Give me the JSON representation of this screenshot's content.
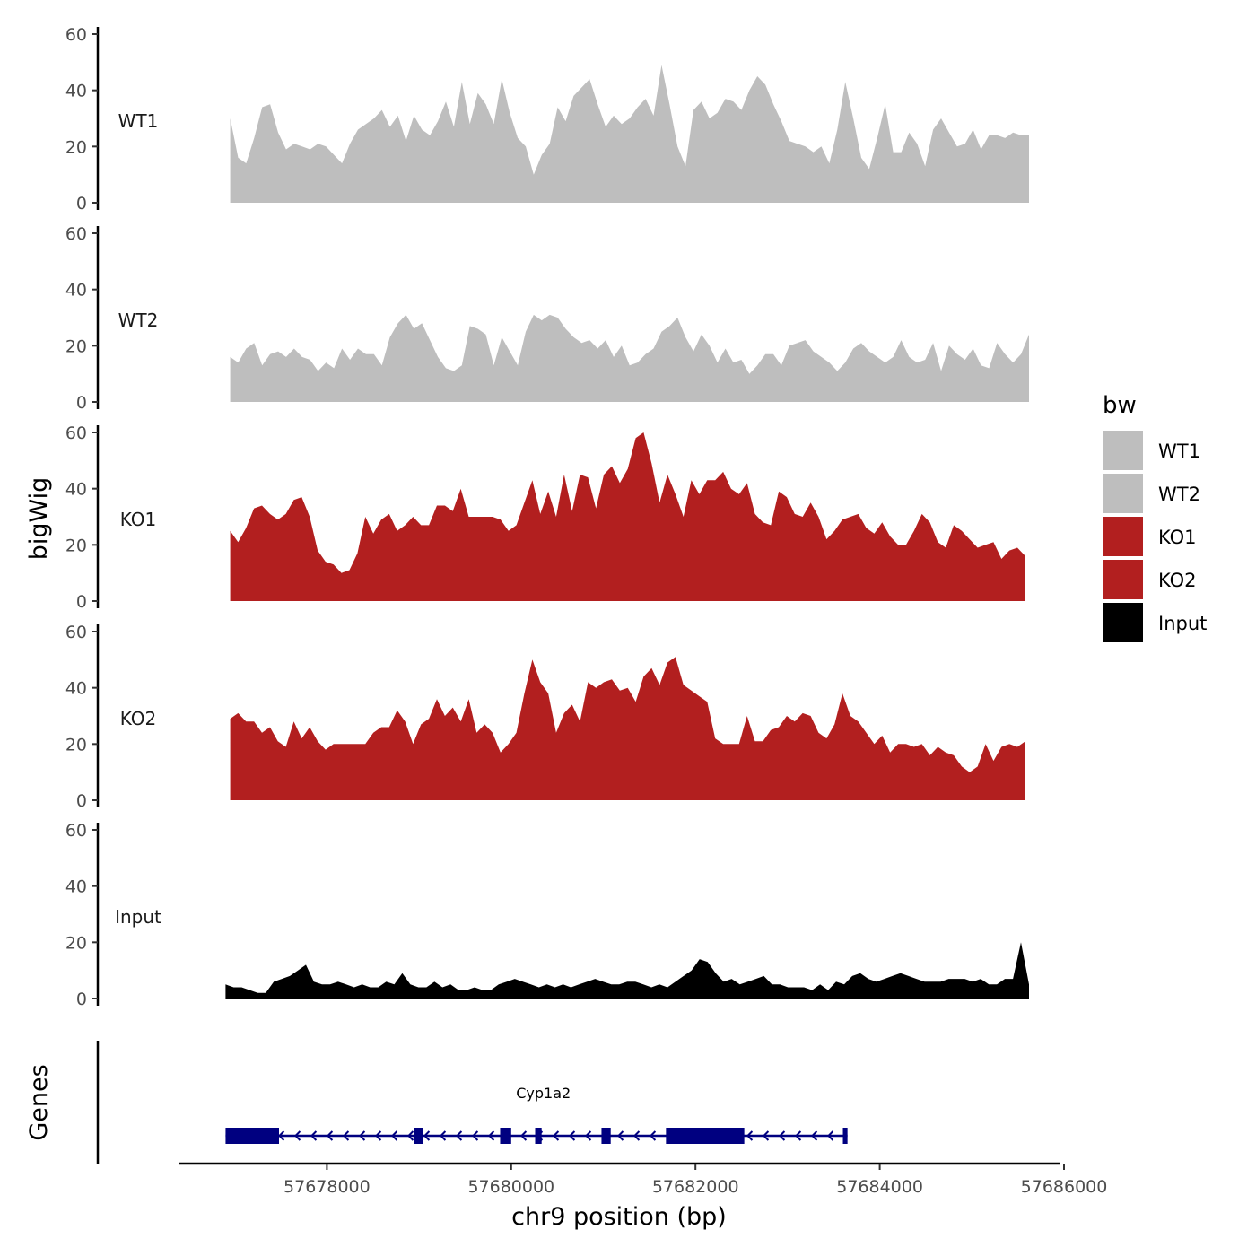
{
  "chart_data": {
    "type": "area",
    "ylabel": "bigWig",
    "genes_label": "Genes",
    "xlabel": "chr9 position (bp)",
    "xlim": [
      57676500,
      57686100
    ],
    "ylim": [
      0,
      60
    ],
    "y_ticks": [
      0,
      20,
      40,
      60
    ],
    "y_tick_labels": [
      "0",
      "20",
      "40",
      "60"
    ],
    "x_ticks": [
      57678000,
      57680000,
      57682000,
      57684000,
      57686000
    ],
    "x_tick_labels": [
      "57678000",
      "57680000",
      "57682000",
      "57684000",
      "57686000"
    ],
    "legend": {
      "title": "bw",
      "entries": [
        {
          "label": "WT1",
          "color": "#bebebe"
        },
        {
          "label": "WT2",
          "color": "#bebebe"
        },
        {
          "label": "KO1",
          "color": "#b21f1f"
        },
        {
          "label": "KO2",
          "color": "#b21f1f"
        },
        {
          "label": "Input",
          "color": "#000000"
        }
      ]
    },
    "tracks": [
      {
        "name": "WT1",
        "color": "#bebebe",
        "x_start": 57676950,
        "x_end": 57685620,
        "values": [
          30,
          16,
          14,
          23,
          34,
          35,
          25,
          19,
          21,
          20,
          19,
          21,
          20,
          17,
          14,
          21,
          26,
          28,
          30,
          33,
          27,
          31,
          22,
          31,
          26,
          24,
          29,
          36,
          27,
          43,
          28,
          39,
          35,
          28,
          44,
          32,
          23,
          20,
          10,
          17,
          21,
          34,
          29,
          38,
          41,
          44,
          35,
          27,
          31,
          28,
          30,
          34,
          37,
          31,
          49,
          35,
          20,
          13,
          33,
          36,
          30,
          32,
          37,
          36,
          33,
          40,
          45,
          42,
          35,
          29,
          22,
          21,
          20,
          18,
          20,
          14,
          26,
          43,
          30,
          16,
          12,
          23,
          35,
          18,
          18,
          25,
          21,
          13,
          26,
          30,
          25,
          20,
          21,
          26,
          19,
          24,
          24,
          23,
          25,
          24,
          24
        ]
      },
      {
        "name": "WT2",
        "color": "#bebebe",
        "x_start": 57676950,
        "x_end": 57685620,
        "values": [
          16,
          14,
          19,
          21,
          13,
          17,
          18,
          16,
          19,
          16,
          15,
          11,
          14,
          12,
          19,
          15,
          19,
          17,
          17,
          13,
          23,
          28,
          31,
          26,
          28,
          22,
          16,
          12,
          11,
          13,
          27,
          26,
          24,
          13,
          23,
          18,
          13,
          25,
          31,
          29,
          31,
          30,
          26,
          23,
          21,
          22,
          19,
          22,
          16,
          20,
          13,
          14,
          17,
          19,
          25,
          27,
          30,
          23,
          18,
          24,
          20,
          14,
          19,
          14,
          15,
          10,
          13,
          17,
          17,
          13,
          20,
          21,
          22,
          18,
          16,
          14,
          11,
          14,
          19,
          21,
          18,
          16,
          14,
          16,
          22,
          16,
          14,
          15,
          21,
          11,
          20,
          17,
          15,
          19,
          13,
          12,
          21,
          17,
          14,
          17,
          24
        ]
      },
      {
        "name": "KO1",
        "color": "#b21f1f",
        "x_start": 57676950,
        "x_end": 57685580,
        "values": [
          25,
          21,
          26,
          33,
          34,
          31,
          29,
          31,
          36,
          37,
          30,
          18,
          14,
          13,
          10,
          11,
          17,
          30,
          24,
          29,
          31,
          25,
          27,
          30,
          27,
          27,
          34,
          34,
          32,
          40,
          30,
          30,
          30,
          30,
          29,
          25,
          27,
          35,
          43,
          31,
          39,
          30,
          45,
          32,
          45,
          44,
          33,
          45,
          48,
          42,
          47,
          58,
          60,
          49,
          35,
          45,
          38,
          30,
          43,
          38,
          43,
          43,
          46,
          40,
          38,
          42,
          31,
          28,
          27,
          39,
          37,
          31,
          30,
          35,
          30,
          22,
          25,
          29,
          30,
          31,
          26,
          24,
          28,
          23,
          20,
          20,
          25,
          31,
          28,
          21,
          19,
          27,
          25,
          22,
          19,
          20,
          21,
          15,
          18,
          19,
          16
        ]
      },
      {
        "name": "KO2",
        "color": "#b21f1f",
        "x_start": 57676950,
        "x_end": 57685580,
        "values": [
          29,
          31,
          28,
          28,
          24,
          26,
          21,
          19,
          28,
          22,
          26,
          21,
          18,
          20,
          20,
          20,
          20,
          20,
          24,
          26,
          26,
          32,
          28,
          20,
          27,
          29,
          36,
          30,
          33,
          28,
          36,
          24,
          27,
          24,
          17,
          20,
          24,
          38,
          50,
          42,
          38,
          24,
          31,
          34,
          28,
          42,
          40,
          42,
          43,
          39,
          40,
          35,
          44,
          47,
          41,
          49,
          51,
          41,
          39,
          37,
          35,
          22,
          20,
          20,
          20,
          30,
          21,
          21,
          25,
          26,
          30,
          28,
          31,
          30,
          24,
          22,
          27,
          38,
          30,
          28,
          24,
          20,
          23,
          17,
          20,
          20,
          19,
          20,
          16,
          19,
          17,
          16,
          12,
          10,
          12,
          20,
          14,
          19,
          20,
          19,
          21
        ]
      },
      {
        "name": "Input",
        "color": "#000000",
        "x_start": 57676900,
        "x_end": 57685620,
        "values": [
          5,
          4,
          4,
          3,
          2,
          2,
          6,
          7,
          8,
          10,
          12,
          6,
          5,
          5,
          6,
          5,
          4,
          5,
          4,
          4,
          6,
          5,
          9,
          5,
          4,
          4,
          6,
          4,
          5,
          3,
          3,
          4,
          3,
          3,
          5,
          6,
          7,
          6,
          5,
          4,
          5,
          4,
          5,
          4,
          5,
          6,
          7,
          6,
          5,
          5,
          6,
          6,
          5,
          4,
          5,
          4,
          6,
          8,
          10,
          14,
          13,
          9,
          6,
          7,
          5,
          6,
          7,
          8,
          5,
          5,
          4,
          4,
          4,
          3,
          5,
          3,
          6,
          5,
          8,
          9,
          7,
          6,
          7,
          8,
          9,
          8,
          7,
          6,
          6,
          6,
          7,
          7,
          7,
          6,
          7,
          5,
          5,
          7,
          7,
          20,
          5
        ]
      }
    ],
    "gene": {
      "name": "Cyp1a2",
      "color": "#000080",
      "start": 57676900,
      "end": 57683650,
      "strand": "-",
      "exons": [
        [
          57676900,
          57677480
        ],
        [
          57678950,
          57679040
        ],
        [
          57679880,
          57680000
        ],
        [
          57680260,
          57680330
        ],
        [
          57680980,
          57681080
        ],
        [
          57681680,
          57682530
        ],
        [
          57683600,
          57683650
        ]
      ],
      "label_position": 57680350
    }
  }
}
